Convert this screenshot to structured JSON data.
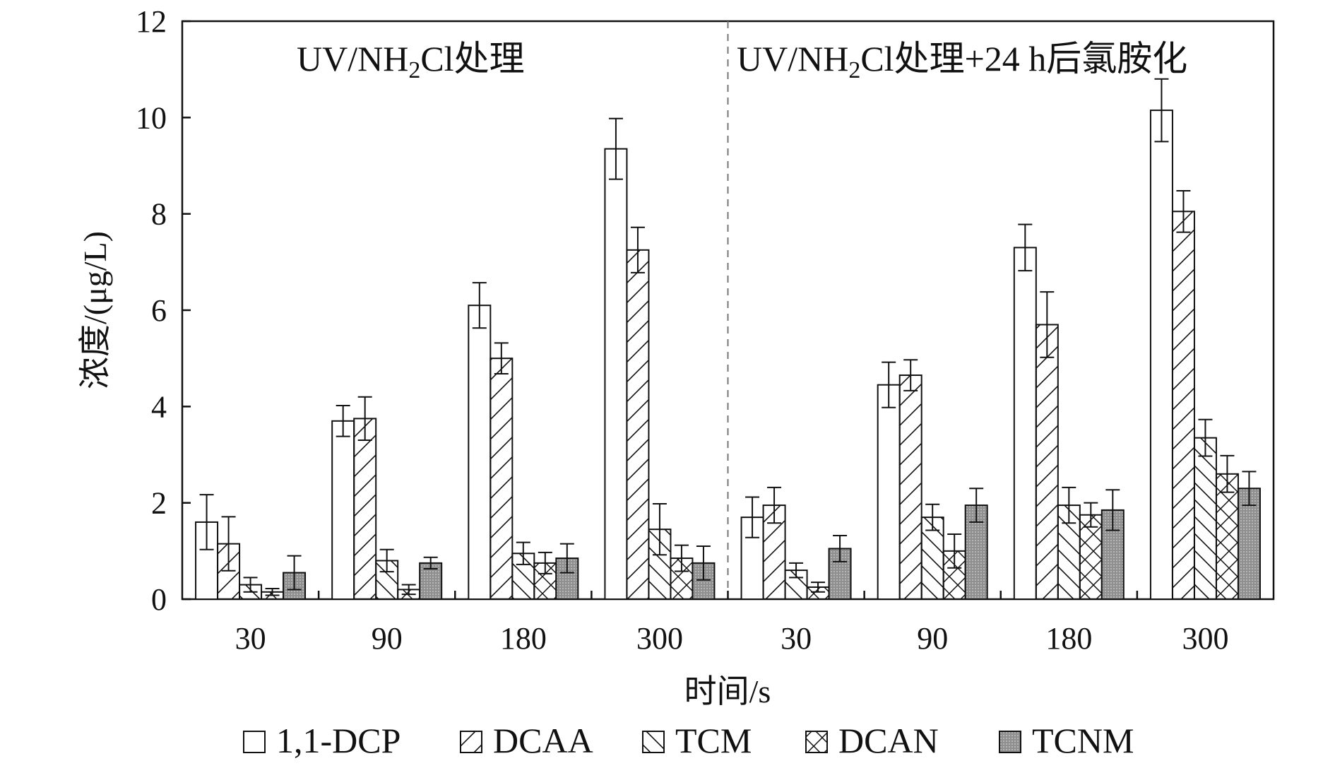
{
  "chart_data": {
    "type": "bar",
    "panels": [
      {
        "title_main": "UV/NH",
        "title_sub": "2",
        "title_rest": "Cl处理"
      },
      {
        "title_main": "UV/NH",
        "title_sub": "2",
        "title_rest": "Cl处理+24 h后氯胺化"
      }
    ],
    "categories": [
      "30",
      "90",
      "180",
      "300",
      "30",
      "90",
      "180",
      "300"
    ],
    "xlabel": "时间/s",
    "ylabel": "浓度/(μg/L)",
    "ylim": [
      0,
      12
    ],
    "yticks": [
      0,
      2,
      4,
      6,
      8,
      10,
      12
    ],
    "grid": false,
    "legend_position": "bottom",
    "series": [
      {
        "name": "1,1-DCP",
        "pattern": "empty",
        "values": [
          1.6,
          3.7,
          6.1,
          9.35,
          1.7,
          4.45,
          7.3,
          10.15
        ],
        "errors": [
          0.57,
          0.32,
          0.47,
          0.63,
          0.42,
          0.47,
          0.48,
          0.65
        ]
      },
      {
        "name": "DCAA",
        "pattern": "hatch-forward",
        "values": [
          1.15,
          3.75,
          5.0,
          7.25,
          1.95,
          4.65,
          5.7,
          8.05
        ],
        "errors": [
          0.56,
          0.45,
          0.32,
          0.47,
          0.37,
          0.32,
          0.68,
          0.43
        ]
      },
      {
        "name": "TCM",
        "pattern": "hatch-back",
        "values": [
          0.3,
          0.8,
          0.95,
          1.45,
          0.6,
          1.7,
          1.95,
          3.35
        ],
        "errors": [
          0.15,
          0.23,
          0.23,
          0.53,
          0.15,
          0.27,
          0.37,
          0.38
        ]
      },
      {
        "name": "DCAN",
        "pattern": "crosshatch",
        "values": [
          0.15,
          0.2,
          0.75,
          0.85,
          0.25,
          1.0,
          1.75,
          2.6
        ],
        "errors": [
          0.07,
          0.1,
          0.22,
          0.27,
          0.1,
          0.35,
          0.25,
          0.38
        ]
      },
      {
        "name": "TCNM",
        "pattern": "gray-fill",
        "values": [
          0.55,
          0.75,
          0.85,
          0.75,
          1.05,
          1.95,
          1.85,
          2.3
        ],
        "errors": [
          0.35,
          0.12,
          0.3,
          0.35,
          0.27,
          0.35,
          0.42,
          0.35
        ]
      }
    ]
  }
}
